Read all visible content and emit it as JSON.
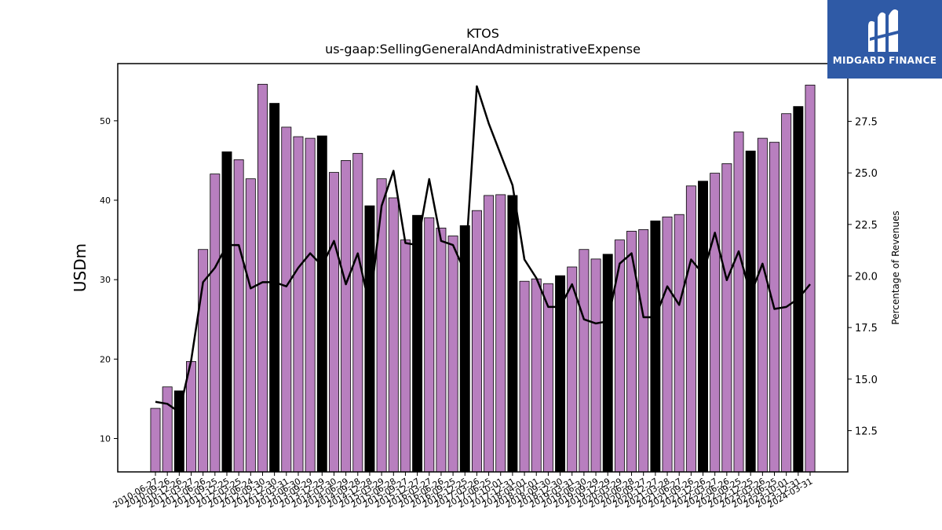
{
  "chart_data": {
    "type": "bar",
    "title": "KTOS",
    "subtitle": "us-gaap:SellingGeneralAndAdministrativeExpense",
    "ylabel": "USDm",
    "y2label": "Percentage of Revenues",
    "ylim": [
      5.8,
      57.2
    ],
    "y2lim": [
      10.5,
      30.3
    ],
    "yticks": [
      10,
      20,
      30,
      40,
      50
    ],
    "y2ticks": [
      "12.5",
      "15.0",
      "17.5",
      "20.0",
      "22.5",
      "25.0",
      "27.5"
    ],
    "bar_color": "#b87fbf",
    "q4_bar_color": "#000000",
    "line_color": "#000000",
    "categories": [
      "2010-06-27",
      "2010-09-26",
      "2010-12-26",
      "2011-03-27",
      "2011-06-26",
      "2011-09-25",
      "2011-12-25",
      "2012-03-25",
      "2012-06-24",
      "2012-09-30",
      "2012-12-30",
      "2013-03-31",
      "2013-06-30",
      "2013-09-29",
      "2013-12-29",
      "2014-03-30",
      "2014-06-29",
      "2014-09-28",
      "2014-12-28",
      "2015-03-29",
      "2015-06-28",
      "2015-09-27",
      "2015-12-27",
      "2016-03-27",
      "2016-06-26",
      "2016-09-25",
      "2016-12-25",
      "2017-03-26",
      "2017-06-25",
      "2017-10-01",
      "2017-12-31",
      "2018-04-01",
      "2018-07-01",
      "2018-09-30",
      "2018-12-30",
      "2019-03-31",
      "2019-06-30",
      "2019-09-29",
      "2019-12-29",
      "2020-03-29",
      "2020-06-28",
      "2020-09-27",
      "2020-12-27",
      "2021-03-28",
      "2021-06-27",
      "2021-09-26",
      "2021-12-26",
      "2022-03-27",
      "2022-06-26",
      "2022-09-25",
      "2022-12-25",
      "2023-03-26",
      "2023-06-25",
      "2023-10-01",
      "2023-12-31",
      "2024-03-31"
    ],
    "tick_labels": [
      "2010-06-27",
      "2010-09-26",
      "2010-12-26",
      "2011-03-27",
      "2011-06-26",
      "2011-09-25",
      "2011-12-25",
      "2012-03-25",
      "2012-06-24",
      "2012-09-30",
      "2012-12-30",
      "2013-03-31",
      "2013-06-30",
      "2013-09-29",
      "2013-12-29",
      "2014-03-30",
      "2014-06-29",
      "2014-09-28",
      "2014-12-28",
      "2015-03-29",
      "2015-06-28",
      "2015-09-27",
      "2015-12-27",
      "2016-03-27",
      "2016-06-26",
      "2016-09-25",
      "2016-12-25",
      "2017-03-26",
      "2017-06-25",
      "2017-10-01",
      "2017-12-31",
      "2018-04-01",
      "2018-07-01",
      "2018-09-30",
      "2018-12-30",
      "2019-03-31",
      "2019-06-30",
      "2019-09-29",
      "2019-12-29",
      "2020-03-29",
      "2020-06-28",
      "2020-09-27",
      "2020-12-27",
      "2021-03-28",
      "2021-06-27",
      "2021-09-26",
      "2021-12-26",
      "2022-03-27",
      "2022-06-26",
      "2022-09-25",
      "2022-12-25",
      "2023-03-26",
      "2023-06-25",
      "2023-10-01",
      "2023-12-31",
      "2024-03-31"
    ],
    "series": [
      {
        "axis": "left",
        "values": [
          13.8,
          16.5,
          16.0,
          19.7,
          33.8,
          43.3,
          46.1,
          45.1,
          42.7,
          54.6,
          52.2,
          49.2,
          48.0,
          47.8,
          48.1,
          43.5,
          45.0,
          45.9,
          39.3,
          42.7,
          40.3,
          35.0,
          38.1,
          37.8,
          36.5,
          35.5,
          36.8,
          38.7,
          40.6,
          40.7,
          40.6,
          29.8,
          30.1,
          29.5,
          30.5,
          31.6,
          33.8,
          32.6,
          33.2,
          35.0,
          36.1,
          36.3,
          37.4,
          37.9,
          38.2,
          41.8,
          42.4,
          43.4,
          44.6,
          48.6,
          46.2,
          47.8,
          47.3,
          50.9,
          51.8,
          54.5
        ],
        "q4_flags": [
          0,
          0,
          1,
          0,
          0,
          0,
          1,
          0,
          0,
          0,
          1,
          0,
          0,
          0,
          1,
          0,
          0,
          0,
          1,
          0,
          0,
          0,
          1,
          0,
          0,
          0,
          1,
          0,
          0,
          0,
          1,
          0,
          0,
          0,
          1,
          0,
          0,
          0,
          1,
          0,
          0,
          0,
          1,
          0,
          0,
          0,
          1,
          0,
          0,
          0,
          1,
          0,
          0,
          0,
          1,
          0
        ]
      },
      {
        "axis": "right",
        "values": [
          13.9,
          13.8,
          13.4,
          15.9,
          19.7,
          20.4,
          21.5,
          21.5,
          19.4,
          19.7,
          19.7,
          19.5,
          20.4,
          21.1,
          20.5,
          21.7,
          19.6,
          21.1,
          18.5,
          23.4,
          25.1,
          21.6,
          21.5,
          24.7,
          21.7,
          21.5,
          20.2,
          29.2,
          27.4,
          25.9,
          24.4,
          20.8,
          19.9,
          18.5,
          18.5,
          19.6,
          17.9,
          17.7,
          17.8,
          20.6,
          21.1,
          18.0,
          18.0,
          19.5,
          18.6,
          20.8,
          20.1,
          22.1,
          19.8,
          21.2,
          19.1,
          20.6,
          18.4,
          18.5,
          18.9,
          19.6
        ]
      }
    ]
  },
  "logo": {
    "text": "MIDGARD FINANCE"
  }
}
